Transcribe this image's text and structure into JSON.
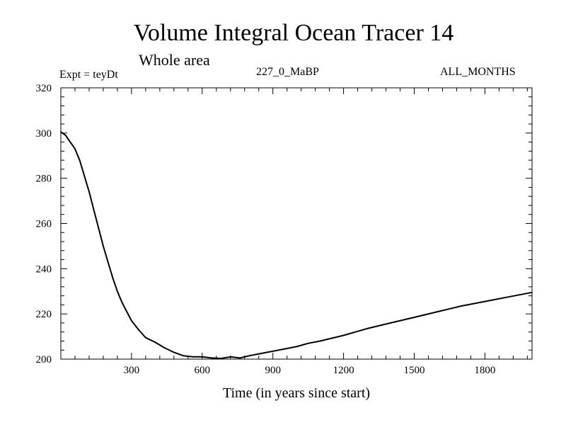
{
  "chart_data": {
    "type": "line",
    "title": "Volume Integral Ocean Tracer 14",
    "subtitle": "Whole area",
    "experiment_label": "Expt = teyDt",
    "run_label": "227_0_MaBP",
    "period_label": "ALL_MONTHS",
    "xlabel": "Time (in years since start)",
    "ylabel": "",
    "xlim": [
      0,
      2000
    ],
    "ylim": [
      200,
      320
    ],
    "x_ticks": [
      300,
      600,
      900,
      1200,
      1500,
      1800
    ],
    "y_ticks": [
      200,
      220,
      240,
      260,
      280,
      300,
      320
    ],
    "series": [
      {
        "name": "Volume Integral Ocean Tracer 14",
        "color": "#000000",
        "x": [
          0,
          20,
          40,
          60,
          80,
          100,
          120,
          140,
          160,
          180,
          200,
          220,
          240,
          260,
          280,
          300,
          330,
          360,
          400,
          440,
          480,
          520,
          560,
          600,
          640,
          680,
          720,
          760,
          800,
          850,
          900,
          950,
          1000,
          1050,
          1100,
          1200,
          1300,
          1400,
          1500,
          1600,
          1700,
          1800,
          1900,
          2000
        ],
        "values": [
          300.5,
          299,
          296,
          293,
          288,
          281,
          274,
          266,
          258,
          250,
          243,
          236,
          230,
          225,
          221,
          217,
          213,
          209.5,
          207.5,
          205,
          203,
          201.5,
          201,
          201,
          200.5,
          200.3,
          201,
          200.5,
          201.5,
          202.5,
          203.5,
          204.5,
          205.5,
          207,
          208,
          210.5,
          213.5,
          216,
          218.5,
          221,
          223.5,
          225.5,
          227.5,
          229.5
        ]
      }
    ]
  }
}
